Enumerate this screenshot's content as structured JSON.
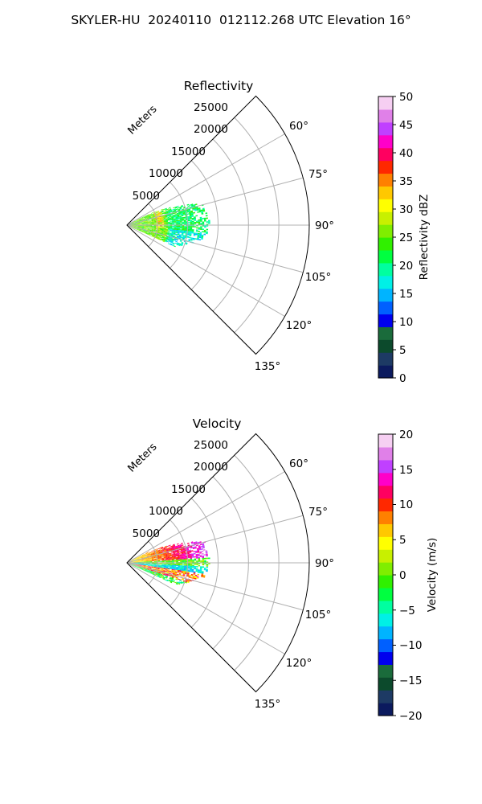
{
  "figure_title": "SKYLER-HU  20240110  012112.268 UTC Elevation 16°",
  "chart_data": [
    {
      "type": "heatmap",
      "projection": "polar-sector",
      "title": "Reflectivity",
      "range_label": "Meters",
      "range_ticks": [
        5000,
        10000,
        15000,
        20000,
        25000
      ],
      "range_tick_labels": [
        "5000",
        "10000",
        "15000",
        "20000",
        "25000"
      ],
      "range_max": 30000,
      "azimuth_ticks": [
        60,
        75,
        90,
        105,
        120,
        135
      ],
      "azimuth_tick_labels": [
        "60°",
        "75°",
        "90°",
        "105°",
        "120°",
        "135°"
      ],
      "azimuth_range": [
        45,
        135
      ],
      "grid": true,
      "colorbar": {
        "label": "Reflectivity dBZ",
        "ticks": [
          0,
          5,
          10,
          15,
          20,
          25,
          30,
          35,
          40,
          45,
          50
        ],
        "tick_labels": [
          "0",
          "5",
          "10",
          "15",
          "20",
          "25",
          "30",
          "35",
          "40",
          "45",
          "50"
        ],
        "range": [
          0,
          50
        ],
        "colors": [
          "#0b1a5e",
          "#1d3a64",
          "#0c4a2c",
          "#1a6b3b",
          "#0000ee",
          "#0060ff",
          "#00b4ff",
          "#00f0e6",
          "#00ffa0",
          "#00ff40",
          "#30f000",
          "#80ee00",
          "#c8f000",
          "#ffff00",
          "#ffc800",
          "#ff8000",
          "#ff2800",
          "#ff0060",
          "#ff00c8",
          "#c040ff",
          "#e080e8",
          "#f6cff2"
        ]
      },
      "field_description": "echo 5-30 dBZ, concentrated 1000-13000 m range, azimuth ~64-113°"
    },
    {
      "type": "heatmap",
      "projection": "polar-sector",
      "title": "Velocity",
      "range_label": "Meters",
      "range_ticks": [
        5000,
        10000,
        15000,
        20000,
        25000
      ],
      "range_tick_labels": [
        "5000",
        "10000",
        "15000",
        "20000",
        "25000"
      ],
      "range_max": 30000,
      "azimuth_ticks": [
        60,
        75,
        90,
        105,
        120,
        135
      ],
      "azimuth_tick_labels": [
        "60°",
        "75°",
        "90°",
        "105°",
        "120°",
        "135°"
      ],
      "azimuth_range": [
        45,
        135
      ],
      "grid": true,
      "colorbar": {
        "label": "Velocity (m/s)",
        "ticks": [
          -20,
          -15,
          -10,
          -5,
          0,
          5,
          10,
          15,
          20
        ],
        "tick_labels": [
          "−20",
          "−15",
          "−10",
          "−5",
          "0",
          "5",
          "10",
          "15",
          "20"
        ],
        "range": [
          -20,
          20
        ],
        "colors": [
          "#0b1a5e",
          "#1d3a64",
          "#0c4a2c",
          "#1a6b3b",
          "#0000ee",
          "#0060ff",
          "#00b4ff",
          "#00f0e6",
          "#00ffa0",
          "#00ff40",
          "#30f000",
          "#80ee00",
          "#c8f000",
          "#ffff00",
          "#ffc800",
          "#ff8000",
          "#ff2800",
          "#ff0060",
          "#ff00c8",
          "#c040ff",
          "#e080e8",
          "#f6cff2"
        ]
      },
      "field_description": "outbound 5-15 m/s north of ~86°, inbound -5 to -12 m/s near 90-97°, outbound band again 98-110°"
    }
  ]
}
